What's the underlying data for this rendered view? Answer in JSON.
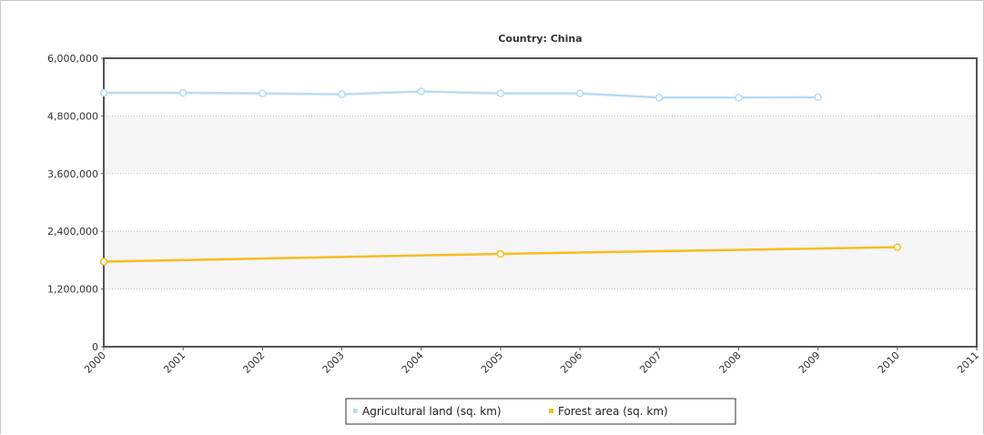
{
  "chart_data": {
    "type": "line",
    "title": "Country: China",
    "xlabel": "",
    "ylabel": "",
    "x": [
      2000,
      2001,
      2002,
      2003,
      2004,
      2005,
      2006,
      2007,
      2008,
      2009,
      2010,
      2011
    ],
    "xlim": [
      2000,
      2011
    ],
    "ylim": [
      0,
      6000000
    ],
    "yticks": [
      0,
      1200000,
      2400000,
      3600000,
      4800000,
      6000000
    ],
    "ytick_labels": [
      "0",
      "1,200,000",
      "2,400,000",
      "3,600,000",
      "4,800,000",
      "6,000,000"
    ],
    "xtick_labels": [
      "2000",
      "2001",
      "2002",
      "2003",
      "2004",
      "2005",
      "2006",
      "2007",
      "2008",
      "2009",
      "2010",
      "2011"
    ],
    "grid": true,
    "legend_position": "bottom-center",
    "series": [
      {
        "name": "Agricultural land (sq. km)",
        "color": "#b6dcf5",
        "points": [
          [
            2000,
            5280000
          ],
          [
            2001,
            5280000
          ],
          [
            2002,
            5270000
          ],
          [
            2003,
            5250000
          ],
          [
            2004,
            5310000
          ],
          [
            2005,
            5270000
          ],
          [
            2006,
            5270000
          ],
          [
            2007,
            5180000
          ],
          [
            2008,
            5180000
          ],
          [
            2009,
            5190000
          ]
        ]
      },
      {
        "name": "Forest area (sq. km)",
        "color": "#f5be1e",
        "points": [
          [
            2000,
            1770000
          ],
          [
            2005,
            1930000
          ],
          [
            2010,
            2070000
          ]
        ]
      }
    ]
  }
}
